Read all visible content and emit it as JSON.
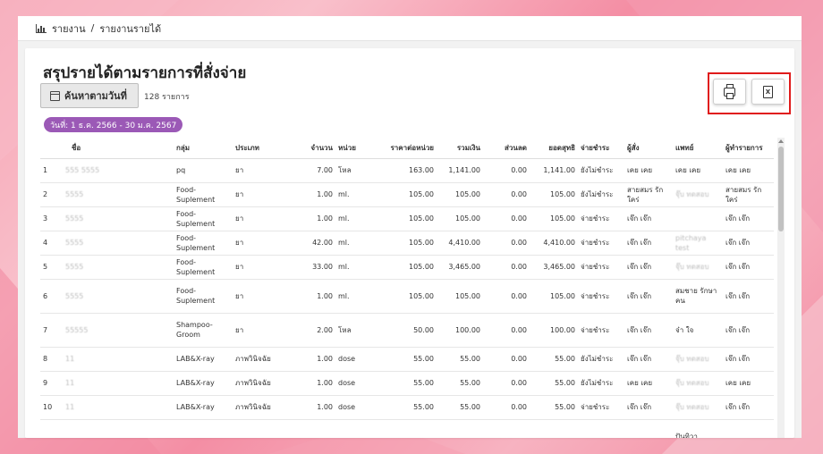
{
  "breadcrumb": {
    "root": "รายงาน",
    "separator": "/",
    "current": "รายงานรายได้"
  },
  "page": {
    "title": "สรุปรายได้ตามรายการที่สั่งจ่าย"
  },
  "toolbar": {
    "search_label": "ค้นหาตามวันที่",
    "count": "128 รายการ",
    "date_range": "วันที่: 1 ธ.ค. 2566 - 30 ม.ค. 2567",
    "print_icon": "printer-icon",
    "excel_icon": "excel-icon"
  },
  "table": {
    "headers": [
      "",
      "ชื่อ",
      "กลุ่ม",
      "ประเภท",
      "จำนวน",
      "หน่วย",
      "ราคาต่อหน่วย",
      "รวมเงิน",
      "ส่วนลด",
      "ยอดสุทธิ",
      "จ่ายชำระ",
      "ผู้สั่ง",
      "แพทย์",
      "ผู้ทำรายการ"
    ],
    "rows": [
      {
        "no": "1",
        "name": "555 5555",
        "group": "pq",
        "type": "ยา",
        "qty": "7.00",
        "unit": "โหล",
        "price": "163.00",
        "total": "1,141.00",
        "discount": "0.00",
        "net": "1,141.00",
        "pay": "ยังไม่ชำระ",
        "orderer": "เคย เคย",
        "doctor": "เคย เคย",
        "staff": "เคย เคย",
        "tall": false
      },
      {
        "no": "2",
        "name": "5555",
        "group": "Food-Suplement",
        "type": "ยา",
        "qty": "1.00",
        "unit": "ml.",
        "price": "105.00",
        "total": "105.00",
        "discount": "0.00",
        "net": "105.00",
        "pay": "ยังไม่ชำระ",
        "orderer": "สายสมร รักใคร่",
        "doctor": "จุ๊บ ทดสอบ",
        "staff": "สายสมร รักใคร่",
        "tall": false
      },
      {
        "no": "3",
        "name": "5555",
        "group": "Food-Suplement",
        "type": "ยา",
        "qty": "1.00",
        "unit": "ml.",
        "price": "105.00",
        "total": "105.00",
        "discount": "0.00",
        "net": "105.00",
        "pay": "จ่ายชำระ",
        "orderer": "เจ๊ก เจ๊ก",
        "doctor": "",
        "staff": "เจ๊ก เจ๊ก",
        "tall": false
      },
      {
        "no": "4",
        "name": "5555",
        "group": "Food-Suplement",
        "type": "ยา",
        "qty": "42.00",
        "unit": "ml.",
        "price": "105.00",
        "total": "4,410.00",
        "discount": "0.00",
        "net": "4,410.00",
        "pay": "จ่ายชำระ",
        "orderer": "เจ๊ก เจ๊ก",
        "doctor": "pitchaya test",
        "staff": "เจ๊ก เจ๊ก",
        "tall": false
      },
      {
        "no": "5",
        "name": "5555",
        "group": "Food-Suplement",
        "type": "ยา",
        "qty": "33.00",
        "unit": "ml.",
        "price": "105.00",
        "total": "3,465.00",
        "discount": "0.00",
        "net": "3,465.00",
        "pay": "จ่ายชำระ",
        "orderer": "เจ๊ก เจ๊ก",
        "doctor": "จุ๊บ ทดสอบ",
        "staff": "เจ๊ก เจ๊ก",
        "tall": false
      },
      {
        "no": "6",
        "name": "5555",
        "group": "Food-Suplement",
        "type": "ยา",
        "qty": "1.00",
        "unit": "ml.",
        "price": "105.00",
        "total": "105.00",
        "discount": "0.00",
        "net": "105.00",
        "pay": "จ่ายชำระ",
        "orderer": "เจ๊ก เจ๊ก",
        "doctor": "สมชาย รักษาคน",
        "staff": "เจ๊ก เจ๊ก",
        "tall": true
      },
      {
        "no": "7",
        "name": "55555",
        "group": "Shampoo-Groom",
        "type": "ยา",
        "qty": "2.00",
        "unit": "โหล",
        "price": "50.00",
        "total": "100.00",
        "discount": "0.00",
        "net": "100.00",
        "pay": "จ่ายชำระ",
        "orderer": "เจ๊ก เจ๊ก",
        "doctor": "จ๋า ใจ",
        "staff": "เจ๊ก เจ๊ก",
        "tall": true
      },
      {
        "no": "8",
        "name": "11",
        "group": "LAB&X-ray",
        "type": "ภาพวินิจฉัย",
        "qty": "1.00",
        "unit": "dose",
        "price": "55.00",
        "total": "55.00",
        "discount": "0.00",
        "net": "55.00",
        "pay": "ยังไม่ชำระ",
        "orderer": "เจ๊ก เจ๊ก",
        "doctor": "จุ๊บ ทดสอบ",
        "staff": "เจ๊ก เจ๊ก",
        "tall": false
      },
      {
        "no": "9",
        "name": "11",
        "group": "LAB&X-ray",
        "type": "ภาพวินิจฉัย",
        "qty": "1.00",
        "unit": "dose",
        "price": "55.00",
        "total": "55.00",
        "discount": "0.00",
        "net": "55.00",
        "pay": "ยังไม่ชำระ",
        "orderer": "เคย เคย",
        "doctor": "จุ๊บ ทดสอบ",
        "staff": "เคย เคย",
        "tall": false
      },
      {
        "no": "10",
        "name": "11",
        "group": "LAB&X-ray",
        "type": "ภาพวินิจฉัย",
        "qty": "1.00",
        "unit": "dose",
        "price": "55.00",
        "total": "55.00",
        "discount": "0.00",
        "net": "55.00",
        "pay": "จ่ายชำระ",
        "orderer": "เจ๊ก เจ๊ก",
        "doctor": "จุ๊บ ทดสอบ",
        "staff": "เจ๊ก เจ๊ก",
        "tall": false
      },
      {
        "no": "",
        "name": "",
        "group": "",
        "type": "",
        "qty": "",
        "unit": "",
        "price": "",
        "total": "",
        "discount": "",
        "net": "",
        "pay": "",
        "orderer": "",
        "doctor": "ปันทิวา",
        "staff": "",
        "tall": true
      }
    ]
  }
}
